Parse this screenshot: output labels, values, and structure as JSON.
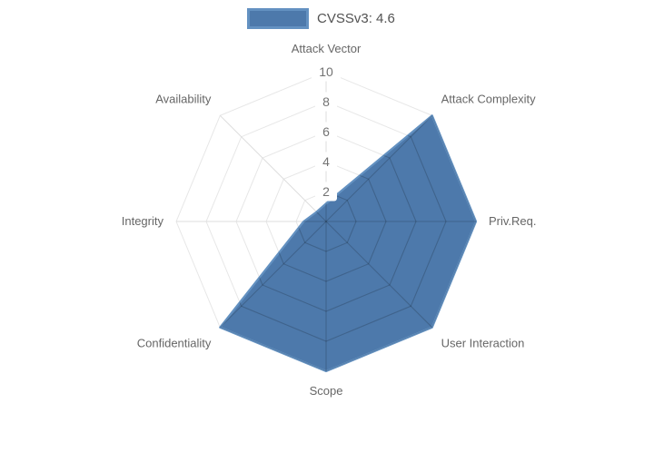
{
  "chart_data": {
    "type": "radar",
    "title": "",
    "legend_position": "top",
    "legend": [
      {
        "label": "CVSSv3: 4.6"
      }
    ],
    "axes": [
      "Attack Vector",
      "Attack Complexity",
      "Priv.Req.",
      "User Interaction",
      "Scope",
      "Confidentiality",
      "Integrity",
      "Availability"
    ],
    "series": [
      {
        "name": "CVSSv3: 4.6",
        "values": [
          1.2,
          10,
          10,
          10,
          10,
          10,
          1.5,
          0.9
        ]
      }
    ],
    "rlim": [
      0,
      10
    ],
    "ticks": [
      2,
      4,
      6,
      8,
      10
    ],
    "grid": "on"
  },
  "colors": {
    "series_fill": "#4d79ab",
    "series_border": "#6391c1",
    "grid_outer": "#e7e7e7",
    "grid_spoke": "#dedede",
    "grid_inner": "rgba(0,0,0,0.18)",
    "axis_label_text": "#666666",
    "tick_text": "#737373",
    "tick_chip_bg": "#ffffff",
    "legend_text": "#525252"
  }
}
